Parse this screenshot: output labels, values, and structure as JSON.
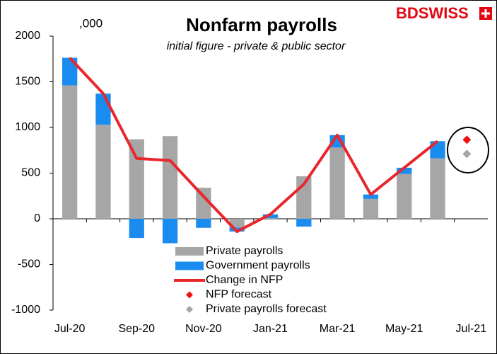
{
  "chart_data": {
    "type": "combo",
    "title": "Nonfarm payrolls",
    "subtitle": "initial figure - private & public sector",
    "unit_note": ",000",
    "logo": "BDSWISS",
    "categories": [
      "Jul-20",
      null,
      "Sep-20",
      null,
      "Nov-20",
      null,
      "Jan-21",
      null,
      "Mar-21",
      null,
      "May-21",
      null,
      "Jul-21"
    ],
    "ylim": [
      -1000,
      2000
    ],
    "yticks": [
      -1000,
      -500,
      0,
      500,
      1000,
      1500,
      2000
    ],
    "grid": false,
    "series": [
      {
        "name": "Private payrolls",
        "type": "bar",
        "color": "#a6a6a6",
        "values": [
          1460,
          1030,
          870,
          905,
          340,
          -95,
          6,
          465,
          780,
          218,
          491,
          662,
          null
        ]
      },
      {
        "name": "Government payrolls",
        "type": "bar",
        "color": "#1a8cf0",
        "values": [
          303,
          340,
          -210,
          -268,
          -99,
          -45,
          43,
          -86,
          136,
          48,
          68,
          188,
          null
        ]
      },
      {
        "name": "Change in NFP",
        "type": "line",
        "color": "#e8262c",
        "values": [
          1763,
          1371,
          661,
          638,
          245,
          -140,
          49,
          379,
          916,
          266,
          559,
          850,
          null
        ]
      },
      {
        "name": "NFP forecast",
        "type": "marker",
        "color": "#ee1111",
        "values": [
          null,
          null,
          null,
          null,
          null,
          null,
          null,
          null,
          null,
          null,
          null,
          null,
          865
        ]
      },
      {
        "name": "Private payrolls forecast",
        "type": "marker",
        "color": "#a6a6a6",
        "values": [
          null,
          null,
          null,
          null,
          null,
          null,
          null,
          null,
          null,
          null,
          null,
          null,
          710
        ]
      }
    ]
  }
}
